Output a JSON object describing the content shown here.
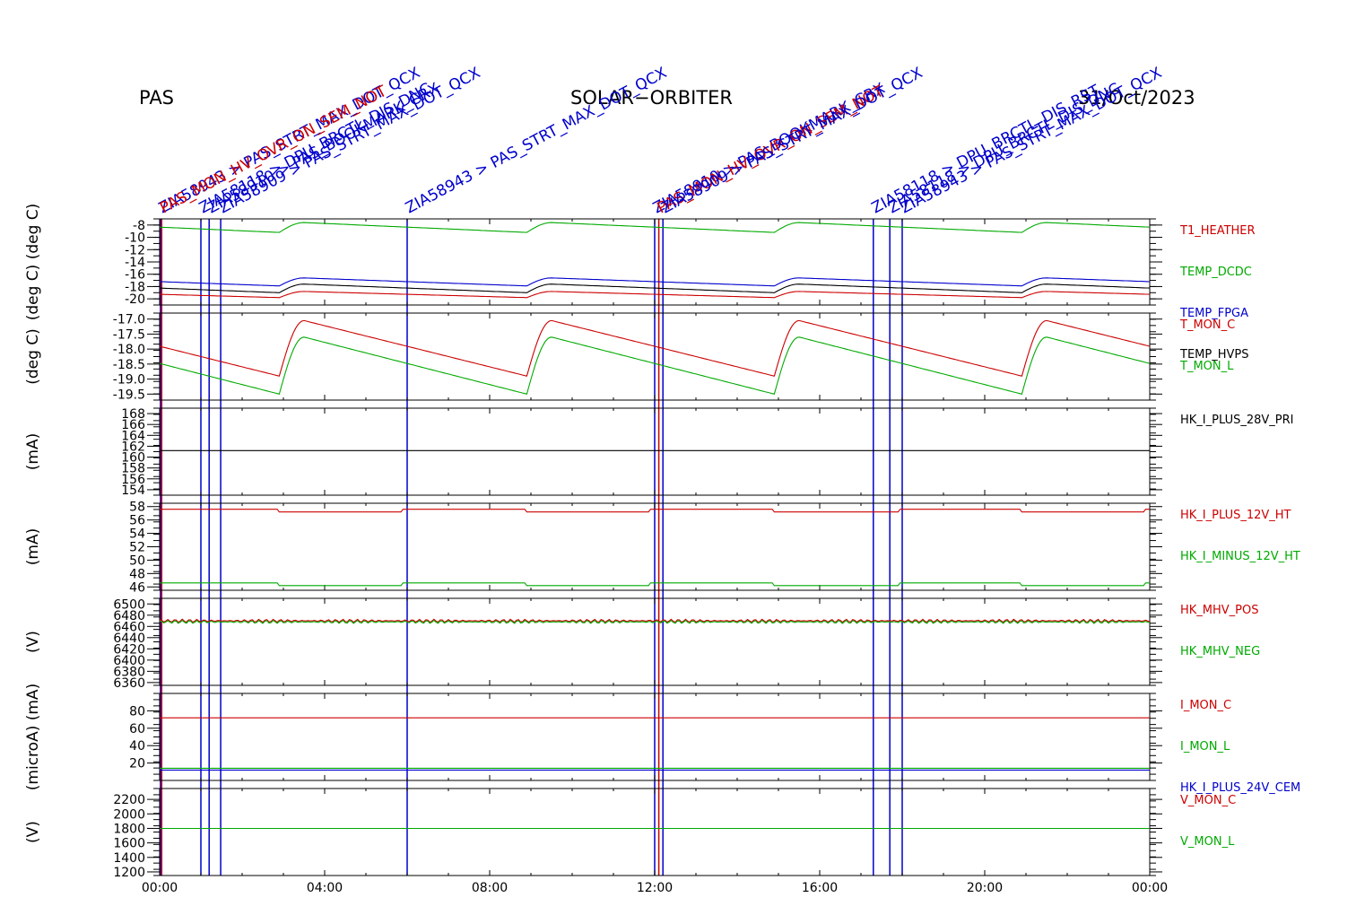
{
  "header": {
    "left": "PAS",
    "center": "SOLAR−ORBITER",
    "right": "31/Oct/2023"
  },
  "events": [
    {
      "t": 0.02,
      "label": "ZIA58943 > PAS_STRT_MAX_DOT_QCX",
      "color": "#0000cc"
    },
    {
      "t": 0.05,
      "label": "PAS_MON_HV_OVR_ON_SEM_NOT",
      "color": "#cc0000"
    },
    {
      "t": 1.0,
      "label": "ZIA58118 > DPU_BRCTL_DIS_DNC",
      "color": "#0000cc"
    },
    {
      "t": 1.2,
      "label": "ZIA58910 > PAS_BOOKMARK_CRX",
      "color": "#0000cc"
    },
    {
      "t": 1.48,
      "label": "ZIA58909 > PAS_STRT_MAX_DOT_QCX",
      "color": "#0000cc"
    },
    {
      "t": 6.0,
      "label": "ZIA58943 > PAS_STRT_MAX_DOT_QCX",
      "color": "#0000cc"
    },
    {
      "t": 12.0,
      "label": "ZIA58910 > PAS_BOOKMARK_CRX",
      "color": "#0000cc"
    },
    {
      "t": 12.1,
      "label": "PAS_MON_HV_OVR_ON_SEM_NOT",
      "color": "#cc0000"
    },
    {
      "t": 12.2,
      "label": "ZIA58909 > PAS_STRT_MAX_DOT_QCX",
      "color": "#0000cc"
    },
    {
      "t": 17.3,
      "label": "ZIA58118 > DPU_BRCTL_DIS_RST",
      "color": "#0000cc"
    },
    {
      "t": 17.7,
      "label": "ZIA58118 > DPU_BRCTL_DIS_DNC",
      "color": "#0000cc"
    },
    {
      "t": 18.0,
      "label": "ZIA58943 > PAS_STRT_MAX_DOT_QCX",
      "color": "#0000cc"
    }
  ],
  "chart_data": {
    "type": "line",
    "x_axis": {
      "range": [
        "00:00",
        "24:00"
      ],
      "ticks": [
        "00:00",
        "04:00",
        "08:00",
        "12:00",
        "16:00",
        "20:00",
        "00:00"
      ]
    },
    "panels": [
      {
        "ylabel": "(deg C)  (deg C)",
        "ylim": [
          -21,
          -7
        ],
        "ticks": [
          "-8",
          "-10",
          "-12",
          "-14",
          "-16",
          "-18",
          "-20"
        ],
        "series": [
          {
            "name": "T1_HEATHER",
            "color": "#cc0000",
            "kind": "sawtooth",
            "low": -19.8,
            "high": -18.8,
            "period": 6
          },
          {
            "name": "TEMP_DCDC",
            "color": "#00aa00",
            "kind": "sawtooth",
            "low": -9.2,
            "high": -7.6,
            "period": 6
          },
          {
            "name": "TEMP_FPGA",
            "color": "#0000cc",
            "kind": "sawtooth",
            "low": -17.9,
            "high": -16.6,
            "period": 6
          },
          {
            "name": "TEMP_HVPS",
            "color": "#000000",
            "kind": "sawtooth",
            "low": -19.0,
            "high": -17.6,
            "period": 6
          }
        ]
      },
      {
        "ylabel": "(deg C)",
        "ylim": [
          -19.7,
          -16.8
        ],
        "ticks": [
          "-17.0",
          "-17.5",
          "-18.0",
          "-18.5",
          "-19.0",
          "-19.5"
        ],
        "series": [
          {
            "name": "T_MON_C",
            "color": "#cc0000",
            "kind": "sawtooth",
            "low": -18.9,
            "high": -17.05,
            "period": 6
          },
          {
            "name": "T_MON_L",
            "color": "#00aa00",
            "kind": "sawtooth",
            "low": -19.5,
            "high": -17.6,
            "period": 6
          }
        ]
      },
      {
        "ylabel": "(mA)",
        "ylim": [
          153,
          169
        ],
        "ticks": [
          "168",
          "166",
          "164",
          "162",
          "160",
          "158",
          "156",
          "154"
        ],
        "series": [
          {
            "name": "HK_I_PLUS_28V_PRI",
            "color": "#000000",
            "kind": "flat",
            "value": 161.2
          }
        ]
      },
      {
        "ylabel": "(mA)",
        "ylim": [
          45.5,
          58.5
        ],
        "ticks": [
          "58",
          "56",
          "54",
          "52",
          "50",
          "48",
          "46"
        ],
        "series": [
          {
            "name": "HK_I_PLUS_12V_HT",
            "color": "#cc0000",
            "kind": "step",
            "value": 57.6,
            "alt": 57.2,
            "period": 6
          },
          {
            "name": "HK_I_MINUS_12V_HT",
            "color": "#00aa00",
            "kind": "step",
            "value": 46.6,
            "alt": 46.2,
            "period": 6
          }
        ]
      },
      {
        "ylabel": "(V)",
        "ylim": [
          6355,
          6510
        ],
        "ticks": [
          "6500",
          "6480",
          "6460",
          "6440",
          "6420",
          "6400",
          "6380",
          "6360"
        ],
        "series": [
          {
            "name": "HK_MHV_POS",
            "color": "#cc0000",
            "kind": "noisy",
            "value": 6470
          },
          {
            "name": "HK_MHV_NEG",
            "color": "#00aa00",
            "kind": "noisy",
            "value": 6468
          }
        ]
      },
      {
        "ylabel": "(microA) (mA)",
        "ylim": [
          0,
          100
        ],
        "ticks": [
          "80",
          "60",
          "40",
          "20"
        ],
        "series": [
          {
            "name": "I_MON_C",
            "color": "#cc0000",
            "kind": "flat",
            "value": 72
          },
          {
            "name": "I_MON_L",
            "color": "#00aa00",
            "kind": "flat",
            "value": 14
          },
          {
            "name": "HK_I_PLUS_24V_CEM",
            "color": "#0000cc",
            "kind": "flat",
            "value": 12
          }
        ]
      },
      {
        "ylabel": "(V)",
        "ylim": [
          1150,
          2350
        ],
        "ticks": [
          "2200",
          "2000",
          "1800",
          "1600",
          "1400",
          "1200"
        ],
        "series": [
          {
            "name": "V_MON_C",
            "color": "#cc0000",
            "kind": "flat",
            "value": 1800
          },
          {
            "name": "V_MON_L",
            "color": "#00aa00",
            "kind": "flat",
            "value": 1800
          }
        ]
      }
    ]
  }
}
